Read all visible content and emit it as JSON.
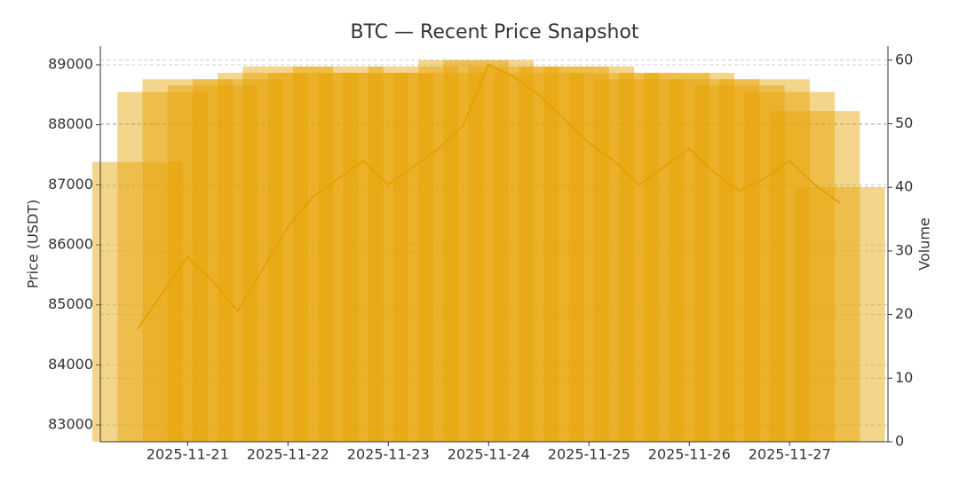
{
  "chart_data": {
    "type": "line_bar",
    "title": "BTC — Recent Price Snapshot",
    "ylabel": "Price (USDT)",
    "y2label": "Volume",
    "x": [
      -0.5,
      -0.25,
      0,
      0.25,
      0.5,
      0.75,
      1,
      1.25,
      1.5,
      1.75,
      2,
      2.25,
      2.5,
      2.75,
      3,
      3.25,
      3.5,
      3.75,
      4,
      4.25,
      4.5,
      4.75,
      5,
      5.25,
      5.5,
      5.75,
      6,
      6.25,
      6.5
    ],
    "xlim": [
      -0.87,
      6.98
    ],
    "xticks": [
      {
        "value": 0,
        "label": "2025-11-21"
      },
      {
        "value": 1,
        "label": "2025-11-22"
      },
      {
        "value": 2,
        "label": "2025-11-23"
      },
      {
        "value": 3,
        "label": "2025-11-24"
      },
      {
        "value": 4,
        "label": "2025-11-25"
      },
      {
        "value": 5,
        "label": "2025-11-26"
      },
      {
        "value": 6,
        "label": "2025-11-27"
      }
    ],
    "ylim": [
      82720,
      89310
    ],
    "yticks": [
      83000,
      84000,
      85000,
      86000,
      87000,
      88000,
      89000
    ],
    "y2lim": [
      0,
      62.2
    ],
    "y2ticks": [
      0,
      10,
      20,
      30,
      40,
      50,
      60
    ],
    "grid": true,
    "series": [
      {
        "name": "Price",
        "type": "line",
        "color": "#e0a000",
        "values": [
          84600,
          85200,
          85800,
          85400,
          84900,
          85600,
          86300,
          86800,
          87100,
          87400,
          87000,
          87300,
          87600,
          88000,
          89000,
          88800,
          88500,
          88100,
          87700,
          87400,
          87000,
          87300,
          87600,
          87200,
          86900,
          87100,
          87400,
          87000,
          86700
        ]
      },
      {
        "name": "Volume",
        "type": "bar",
        "axis": "y2",
        "color": "#e6a200",
        "values": [
          44,
          55,
          57,
          56,
          57,
          58,
          59,
          58,
          59,
          58,
          58,
          59,
          58,
          60,
          60,
          59,
          58,
          59,
          59,
          58,
          57,
          58,
          58,
          57,
          56,
          57,
          55,
          52,
          40
        ]
      }
    ]
  }
}
